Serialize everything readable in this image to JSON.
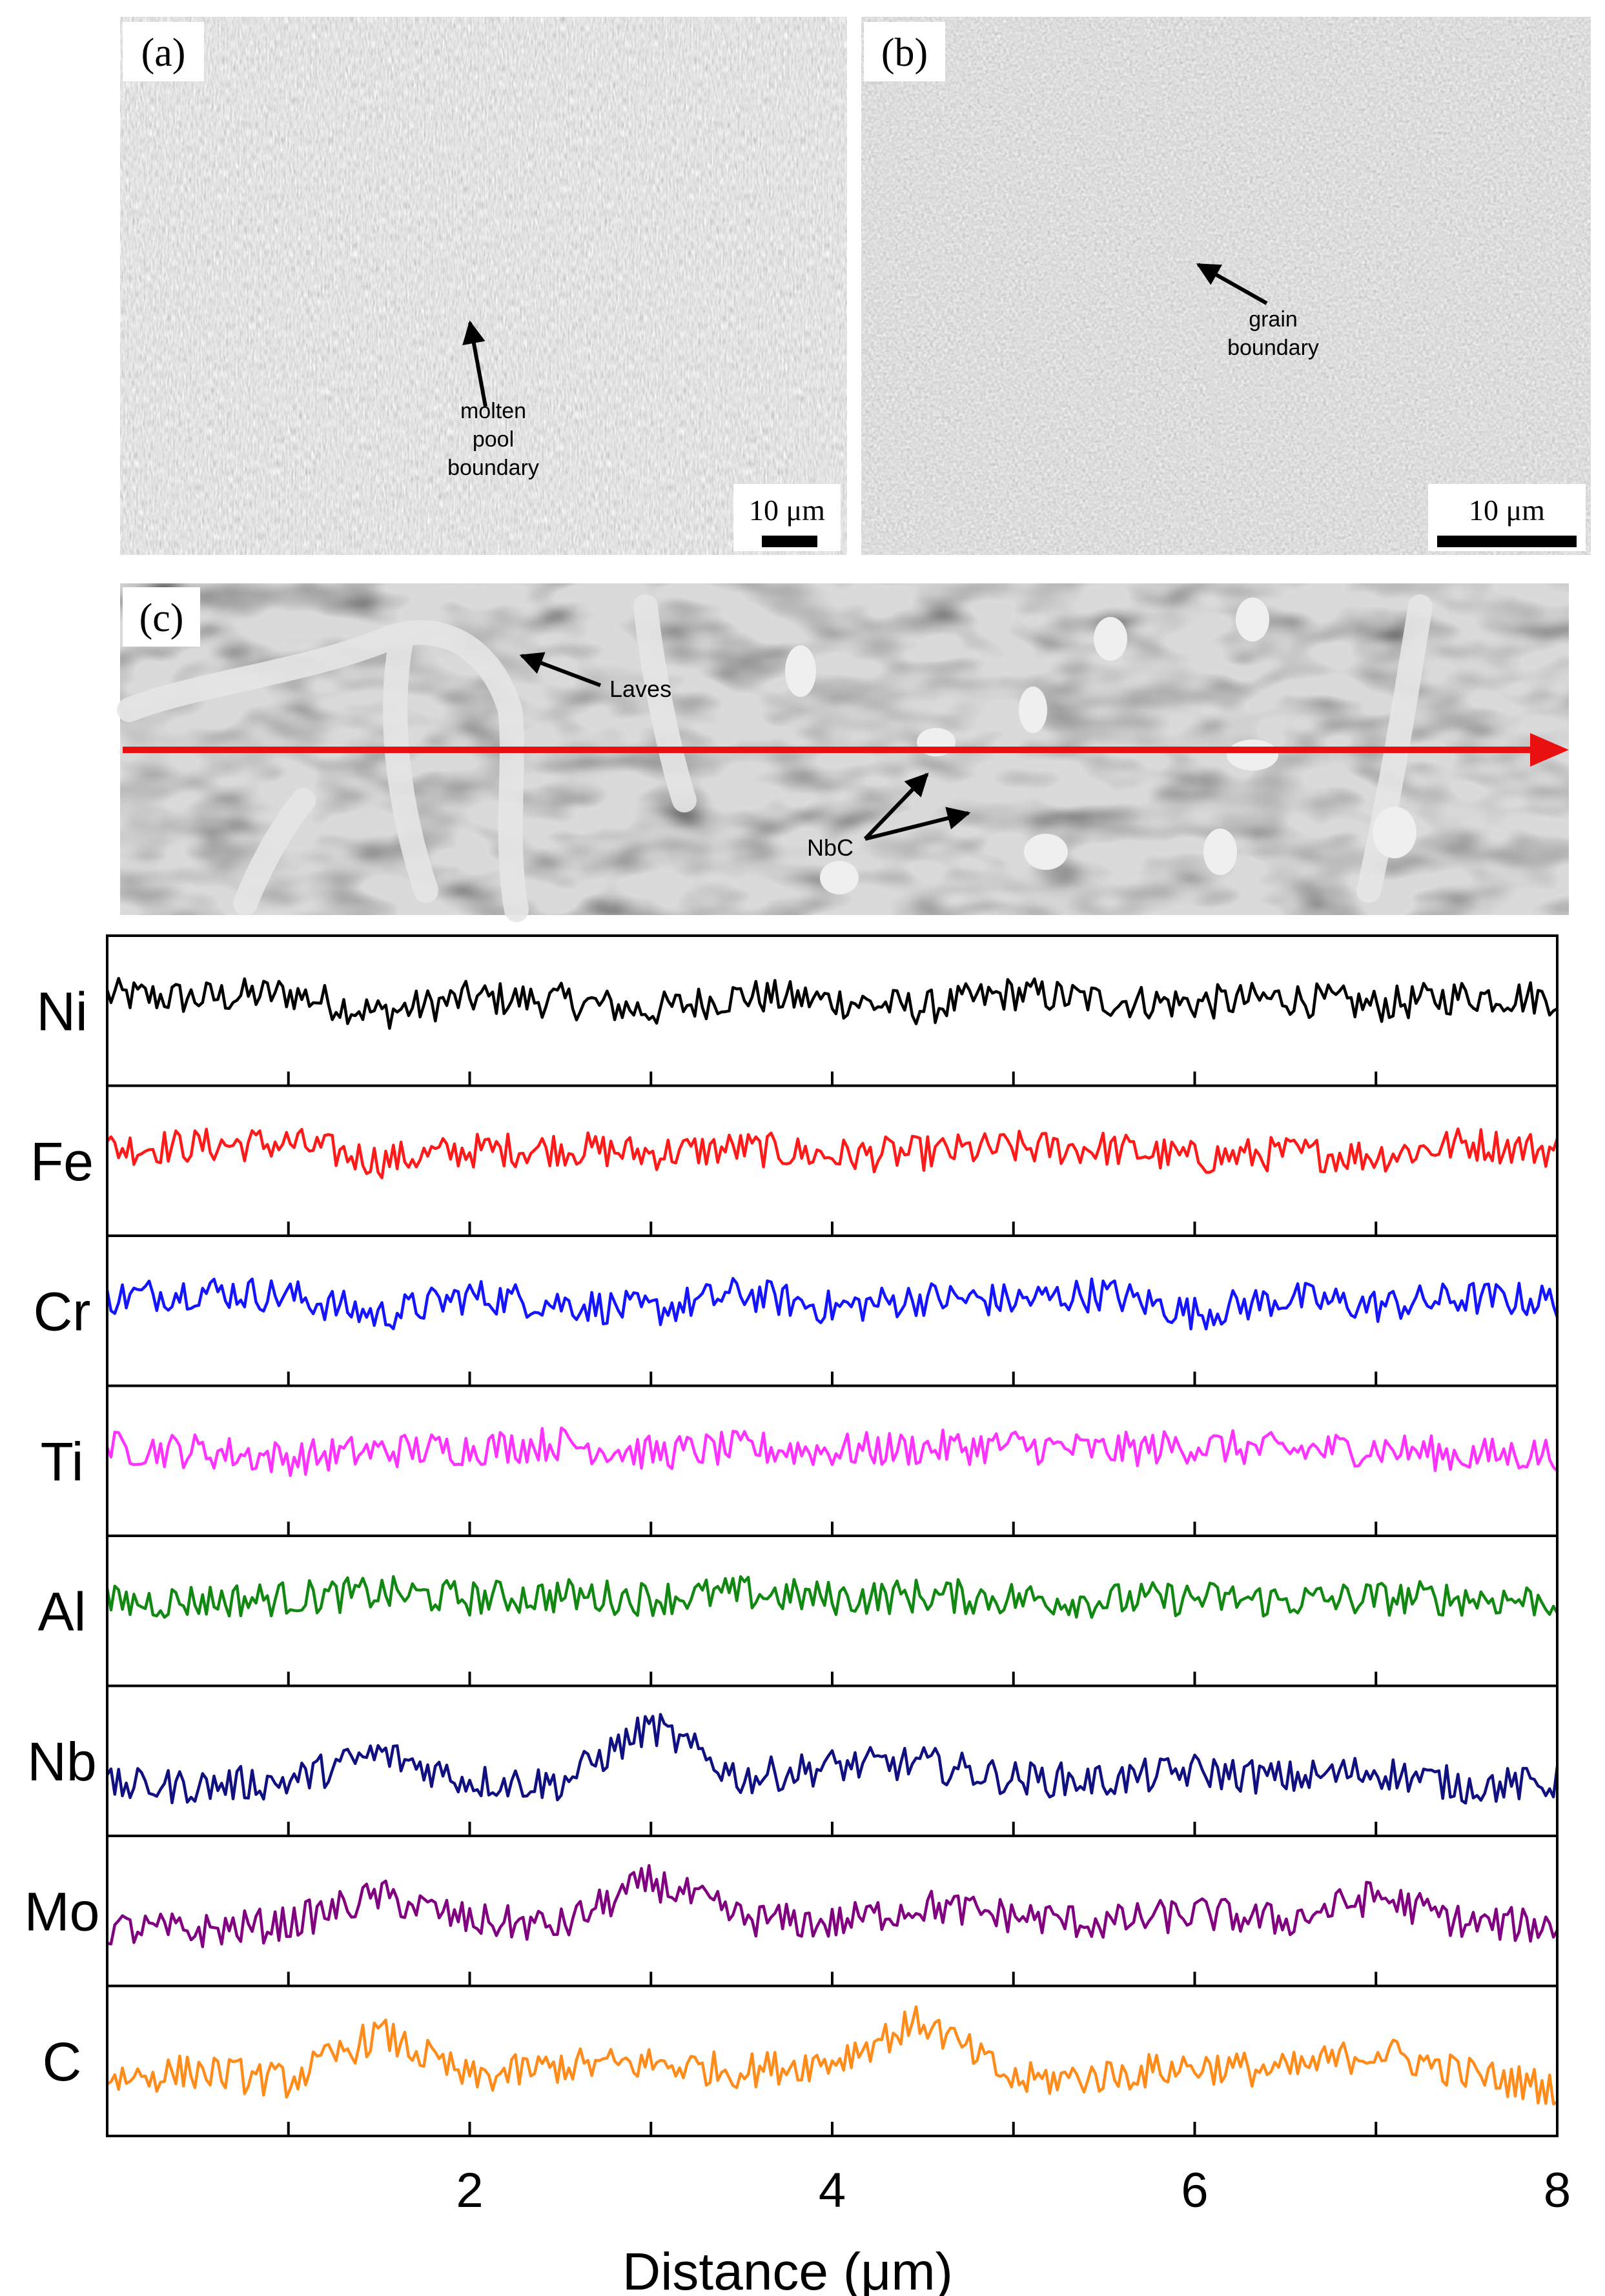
{
  "panels": {
    "a": {
      "label": "(a)",
      "annotation": [
        "molten",
        "pool",
        "boundary"
      ],
      "scale_bar": "10 μm"
    },
    "b": {
      "label": "(b)",
      "annotation": [
        "grain",
        "boundary"
      ],
      "scale_bar": "10 μm"
    },
    "c": {
      "label": "(c)",
      "annotation_laves": "Laves",
      "annotation_nbc": "NbC"
    }
  },
  "colors": {
    "scan_line": "#e81010",
    "Ni": "#000000",
    "Fe": "#ff1a1a",
    "Cr": "#1414ff",
    "Ti": "#ff33ff",
    "Al": "#118811",
    "Nb": "#101080",
    "Mo": "#800080",
    "C": "#ff8c1a"
  },
  "chart_data": {
    "type": "line",
    "xlabel": "Distance (μm)",
    "xlim": [
      0,
      8
    ],
    "x_ticks": [
      2,
      4,
      6,
      8
    ],
    "x_tick_labels": [
      "2",
      "4",
      "6",
      "8"
    ],
    "x_minor_ticks": [
      1,
      3,
      5,
      7
    ],
    "series": [
      {
        "name": "Ni",
        "x": [
          0,
          0.5,
          1.0,
          1.5,
          2.0,
          2.5,
          3.0,
          3.5,
          4.0,
          4.5,
          5.0,
          5.5,
          6.0,
          6.5,
          7.0,
          7.5,
          8.0
        ],
        "values": [
          0.62,
          0.6,
          0.64,
          0.48,
          0.6,
          0.58,
          0.5,
          0.62,
          0.58,
          0.52,
          0.64,
          0.58,
          0.56,
          0.6,
          0.54,
          0.62,
          0.6
        ]
      },
      {
        "name": "Fe",
        "x": [
          0,
          0.5,
          1.0,
          1.5,
          2.0,
          2.5,
          3.0,
          3.5,
          4.0,
          4.5,
          5.0,
          5.5,
          6.0,
          6.5,
          7.0,
          7.5,
          8.0
        ],
        "values": [
          0.6,
          0.62,
          0.64,
          0.5,
          0.58,
          0.6,
          0.56,
          0.6,
          0.54,
          0.56,
          0.6,
          0.6,
          0.52,
          0.56,
          0.54,
          0.64,
          0.58
        ]
      },
      {
        "name": "Cr",
        "x": [
          0,
          0.5,
          1.0,
          1.5,
          2.0,
          2.5,
          3.0,
          3.5,
          4.0,
          4.5,
          5.0,
          5.5,
          6.0,
          6.5,
          7.0,
          7.5,
          8.0
        ],
        "values": [
          0.6,
          0.66,
          0.62,
          0.46,
          0.62,
          0.56,
          0.5,
          0.64,
          0.52,
          0.6,
          0.58,
          0.64,
          0.48,
          0.6,
          0.54,
          0.6,
          0.58
        ]
      },
      {
        "name": "Ti",
        "x": [
          0,
          0.5,
          1.0,
          1.5,
          2.0,
          2.5,
          3.0,
          3.5,
          4.0,
          4.5,
          5.0,
          5.5,
          6.0,
          6.5,
          7.0,
          7.5,
          8.0
        ],
        "values": [
          0.6,
          0.58,
          0.52,
          0.58,
          0.6,
          0.64,
          0.56,
          0.6,
          0.58,
          0.6,
          0.62,
          0.58,
          0.62,
          0.58,
          0.6,
          0.54,
          0.56
        ]
      },
      {
        "name": "Al",
        "x": [
          0,
          0.5,
          1.0,
          1.5,
          2.0,
          2.5,
          3.0,
          3.5,
          4.0,
          4.5,
          5.0,
          5.5,
          6.0,
          6.5,
          7.0,
          7.5,
          8.0
        ],
        "values": [
          0.56,
          0.58,
          0.6,
          0.64,
          0.6,
          0.62,
          0.6,
          0.64,
          0.6,
          0.62,
          0.6,
          0.58,
          0.6,
          0.58,
          0.6,
          0.6,
          0.58
        ]
      },
      {
        "name": "Nb",
        "x": [
          0,
          0.5,
          1.0,
          1.5,
          2.0,
          2.5,
          3.0,
          3.5,
          4.0,
          4.5,
          5.0,
          5.5,
          6.0,
          6.5,
          7.0,
          7.5,
          8.0
        ],
        "values": [
          0.3,
          0.3,
          0.34,
          0.56,
          0.34,
          0.32,
          0.78,
          0.36,
          0.46,
          0.48,
          0.36,
          0.34,
          0.42,
          0.36,
          0.42,
          0.3,
          0.32
        ]
      },
      {
        "name": "Mo",
        "x": [
          0,
          0.5,
          1.0,
          1.5,
          2.0,
          2.5,
          3.0,
          3.5,
          4.0,
          4.5,
          5.0,
          5.5,
          6.0,
          6.5,
          7.0,
          7.5,
          8.0
        ],
        "values": [
          0.36,
          0.34,
          0.4,
          0.62,
          0.42,
          0.38,
          0.74,
          0.44,
          0.4,
          0.54,
          0.46,
          0.4,
          0.48,
          0.42,
          0.62,
          0.4,
          0.38
        ]
      },
      {
        "name": "C",
        "x": [
          0,
          0.5,
          1.0,
          1.5,
          2.0,
          2.5,
          3.0,
          3.5,
          4.0,
          4.5,
          5.0,
          5.5,
          6.0,
          6.5,
          7.0,
          7.5,
          8.0
        ],
        "values": [
          0.36,
          0.42,
          0.34,
          0.72,
          0.36,
          0.46,
          0.48,
          0.42,
          0.5,
          0.82,
          0.34,
          0.38,
          0.46,
          0.42,
          0.58,
          0.4,
          0.28
        ]
      }
    ]
  }
}
